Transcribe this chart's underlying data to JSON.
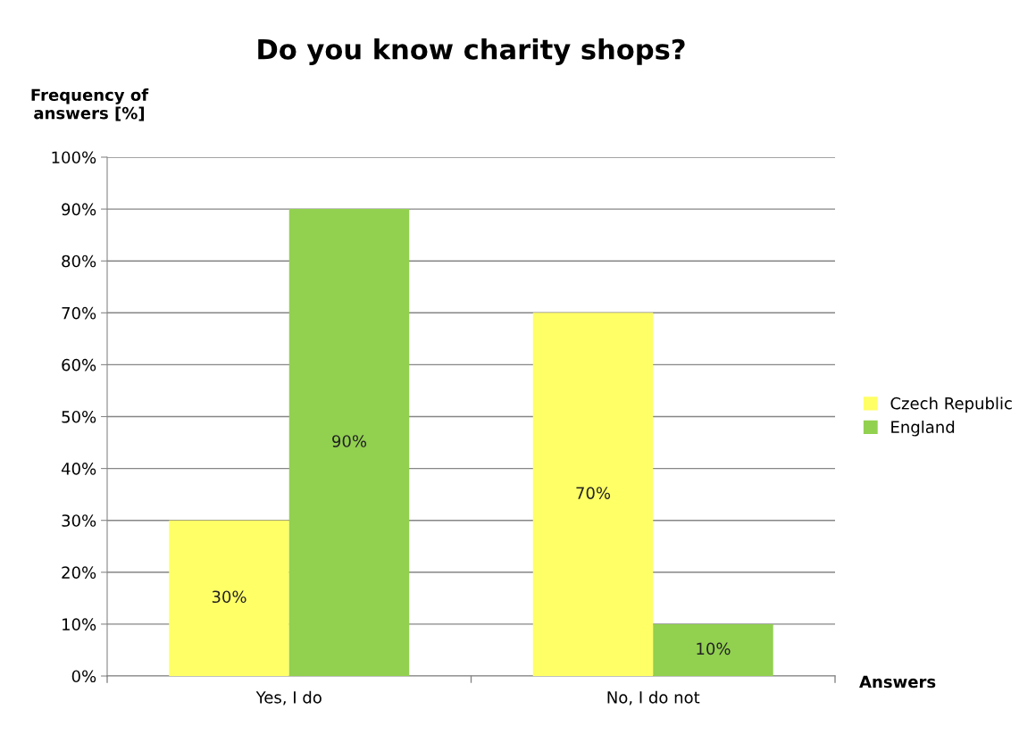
{
  "chart_data": {
    "type": "bar",
    "title": "Do you know charity shops?",
    "ylabel": "Frequency of\nanswers [%]",
    "xlabel": "Answers",
    "categories": [
      "Yes, I do",
      "No, I do not"
    ],
    "series": [
      {
        "name": "Czech Republic",
        "color": "#ffff66",
        "values": [
          30,
          70
        ],
        "value_labels": [
          "30%",
          "70%"
        ]
      },
      {
        "name": "England",
        "color": "#92d050",
        "values": [
          90,
          10
        ],
        "value_labels": [
          "90%",
          "10%"
        ]
      }
    ],
    "ylim": [
      0,
      100
    ],
    "yticks": [
      {
        "value": 0,
        "label": "0%"
      },
      {
        "value": 10,
        "label": "10%"
      },
      {
        "value": 20,
        "label": "20%"
      },
      {
        "value": 30,
        "label": "30%"
      },
      {
        "value": 40,
        "label": "40%"
      },
      {
        "value": 50,
        "label": "50%"
      },
      {
        "value": 60,
        "label": "60%"
      },
      {
        "value": 70,
        "label": "70%"
      },
      {
        "value": 80,
        "label": "80%"
      },
      {
        "value": 90,
        "label": "90%"
      },
      {
        "value": 100,
        "label": "100%"
      }
    ],
    "grid": "y",
    "legend": "right"
  }
}
